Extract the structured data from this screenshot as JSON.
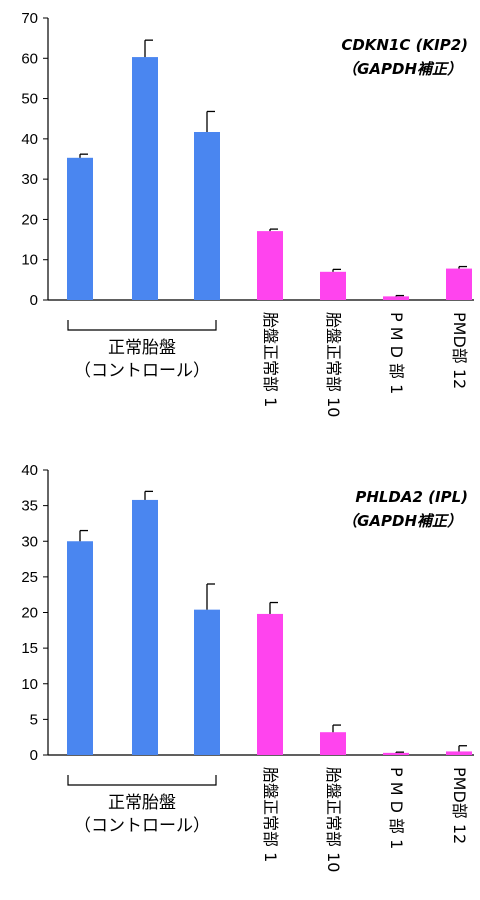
{
  "chart_data": [
    {
      "type": "bar",
      "title_line1": "CDKN1C (KIP2)",
      "title_line2": "（GAPDH補正）",
      "ylim": [
        0,
        70
      ],
      "yticks": [
        0,
        10,
        20,
        30,
        40,
        50,
        60,
        70
      ],
      "group_label_line1": "正常胎盤",
      "group_label_line2": "（コントロール）",
      "categories": [
        "",
        "",
        "",
        "胎盤正常部 1",
        "胎盤正常部 10",
        "P M D 部 1",
        "PMD部 12"
      ],
      "values": [
        35.3,
        60.3,
        41.7,
        17.1,
        7.0,
        0.9,
        7.8
      ],
      "errors": [
        0.9,
        4.2,
        5.1,
        0.5,
        0.6,
        0.2,
        0.5
      ],
      "colors": [
        "#4a86f0",
        "#4a86f0",
        "#4a86f0",
        "#ff44ee",
        "#ff44ee",
        "#ff44ee",
        "#ff44ee"
      ],
      "grid": false
    },
    {
      "type": "bar",
      "title_line1": "PHLDA2 (IPL)",
      "title_line2": "（GAPDH補正）",
      "ylim": [
        0,
        40
      ],
      "yticks": [
        0,
        5,
        10,
        15,
        20,
        25,
        30,
        35,
        40
      ],
      "group_label_line1": "正常胎盤",
      "group_label_line2": "（コントロール）",
      "categories": [
        "",
        "",
        "",
        "胎盤正常部 1",
        "胎盤正常部 10",
        "P M D 部 1",
        "PMD部 12"
      ],
      "values": [
        30.0,
        35.8,
        20.4,
        19.8,
        3.2,
        0.3,
        0.5
      ],
      "errors": [
        1.5,
        1.2,
        3.6,
        1.6,
        1.0,
        0.1,
        0.8
      ],
      "colors": [
        "#4a86f0",
        "#4a86f0",
        "#4a86f0",
        "#ff44ee",
        "#ff44ee",
        "#ff44ee",
        "#ff44ee"
      ],
      "grid": false
    }
  ]
}
